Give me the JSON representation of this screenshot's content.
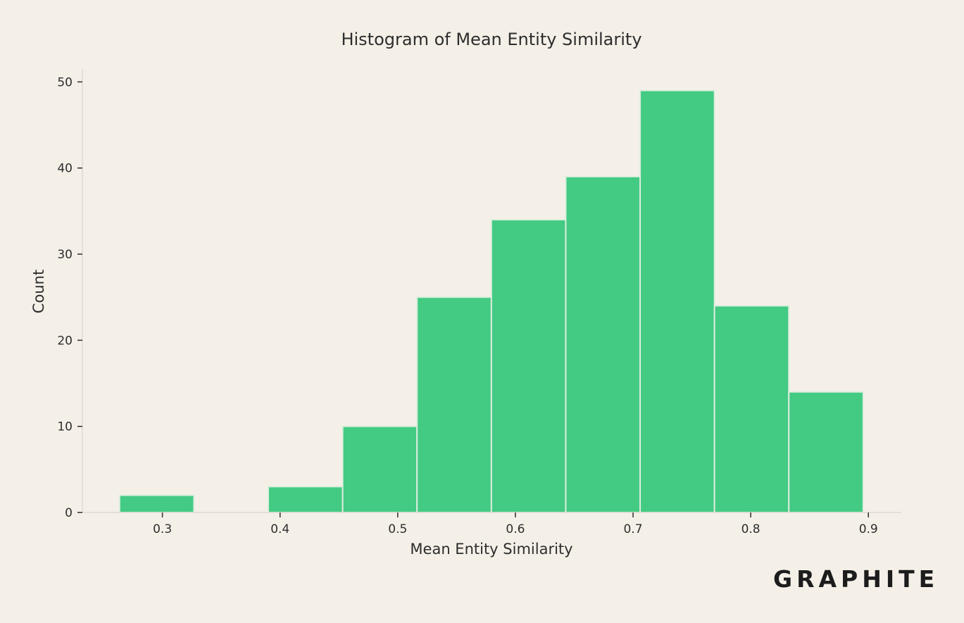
{
  "chart_data": {
    "type": "bar",
    "title": "Histogram of Mean Entity Similarity",
    "xlabel": "Mean Entity Similarity",
    "ylabel": "Count",
    "xlim": [
      0.232,
      0.928
    ],
    "ylim": [
      0,
      51.5
    ],
    "xticks": [
      0.3,
      0.4,
      0.5,
      0.6,
      0.7,
      0.8,
      0.9
    ],
    "yticks": [
      0,
      10,
      20,
      30,
      40,
      50
    ],
    "bins": [
      {
        "start": 0.2636,
        "end": 0.3268,
        "count": 2
      },
      {
        "start": 0.3268,
        "end": 0.39,
        "count": 0
      },
      {
        "start": 0.39,
        "end": 0.4532,
        "count": 3
      },
      {
        "start": 0.4532,
        "end": 0.5164,
        "count": 10
      },
      {
        "start": 0.5164,
        "end": 0.5796,
        "count": 25
      },
      {
        "start": 0.5796,
        "end": 0.6428,
        "count": 34
      },
      {
        "start": 0.6428,
        "end": 0.706,
        "count": 39
      },
      {
        "start": 0.706,
        "end": 0.7692,
        "count": 49
      },
      {
        "start": 0.7692,
        "end": 0.8324,
        "count": 24
      },
      {
        "start": 0.8324,
        "end": 0.8956,
        "count": 14
      }
    ],
    "bar_color": "#43ca83",
    "edge_color": "#dbeedd",
    "grid": false
  },
  "branding": {
    "logo_text": "GRAPHITE"
  }
}
